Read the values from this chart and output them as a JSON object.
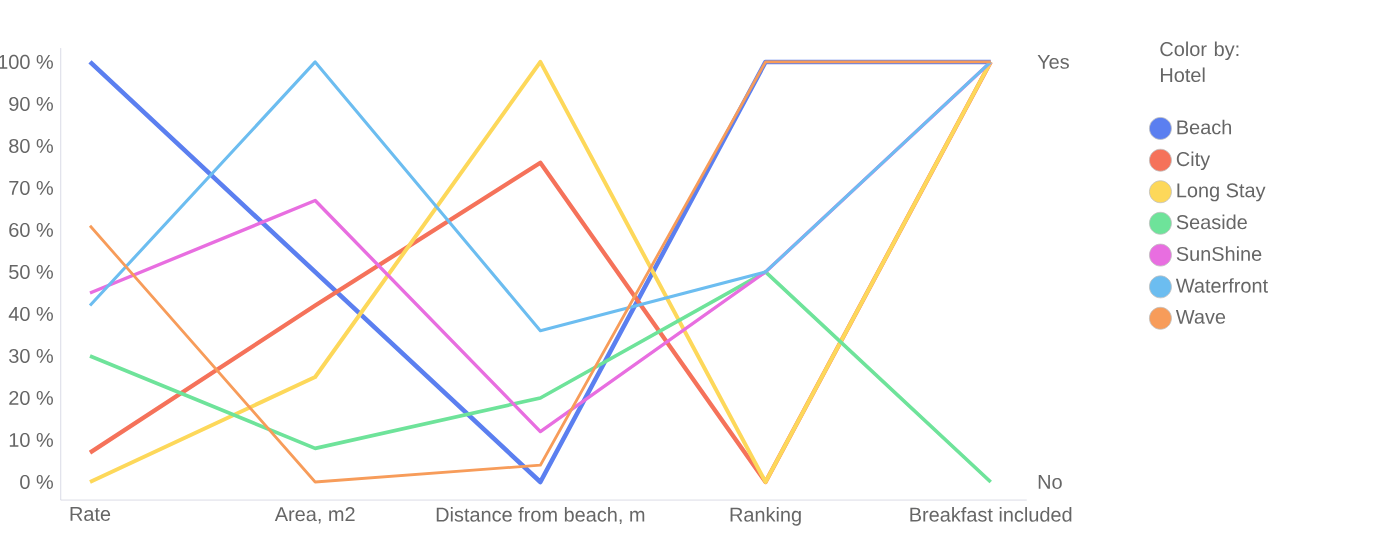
{
  "chart_data": {
    "type": "line",
    "categories": [
      "Rate",
      "Area, m2",
      "Distance from beach, m",
      "Ranking",
      "Breakfast included"
    ],
    "series": [
      {
        "name": "Beach",
        "color": "#5b7ff0",
        "values": [
          100,
          50,
          0,
          100,
          100
        ]
      },
      {
        "name": "City",
        "color": "#f5725a",
        "values": [
          7,
          42,
          76,
          0,
          100
        ]
      },
      {
        "name": "Long Stay",
        "color": "#fdd85a",
        "values": [
          0,
          25,
          100,
          0,
          100
        ]
      },
      {
        "name": "Seaside",
        "color": "#6ee39a",
        "values": [
          30,
          8,
          20,
          50,
          0
        ]
      },
      {
        "name": "SunShine",
        "color": "#e86ee0",
        "values": [
          45,
          67,
          12,
          50,
          100
        ]
      },
      {
        "name": "Waterfront",
        "color": "#6cbdf0",
        "values": [
          42,
          100,
          36,
          50,
          100
        ]
      },
      {
        "name": "Wave",
        "color": "#f79c5a",
        "values": [
          61,
          0,
          4,
          100,
          100
        ]
      }
    ],
    "ylim": [
      -4.3,
      103.3
    ],
    "yticks": [
      {
        "value": 0,
        "label": "0 %"
      },
      {
        "value": 10,
        "label": "10 %"
      },
      {
        "value": 20,
        "label": "20 %"
      },
      {
        "value": 30,
        "label": "30 %"
      },
      {
        "value": 40,
        "label": "40 %"
      },
      {
        "value": 50,
        "label": "50 %"
      },
      {
        "value": 60,
        "label": "60 %"
      },
      {
        "value": 70,
        "label": "70 %"
      },
      {
        "value": 80,
        "label": "80 %"
      },
      {
        "value": 90,
        "label": "90 %"
      },
      {
        "value": 100,
        "label": "100 %"
      }
    ],
    "annotations": [
      "Yes",
      "No"
    ],
    "legend_title": "Color by: Hotel",
    "legend": "right",
    "marker": "none",
    "line_style": "solid",
    "grid": false
  }
}
